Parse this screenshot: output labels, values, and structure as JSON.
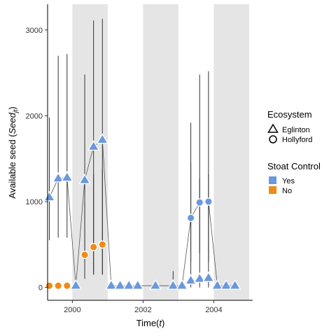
{
  "chart_data": {
    "type": "scatter",
    "xlabel": "Time(t)",
    "ylabel": "Available seed (Seed_jt)",
    "xlabel_parts": {
      "main": "Time(",
      "italic": "t",
      "close": ")"
    },
    "ylabel_parts": {
      "main": "Available seed (",
      "italic": "Seed",
      "sub": "jt",
      "close": ")"
    },
    "xlim": [
      1999.3,
      2005.1
    ],
    "ylim": [
      -150,
      3300
    ],
    "x_ticks": [
      2000,
      2002,
      2004
    ],
    "x_tick_labels": [
      "2000",
      "2002",
      "2004"
    ],
    "y_ticks": [
      0,
      1000,
      2000,
      3000
    ],
    "y_tick_labels": [
      "0",
      "1000",
      "2000",
      "3000"
    ],
    "grid": false,
    "shaded_periods": [
      [
        2000.0,
        2001.0
      ],
      [
        2002.0,
        2003.0
      ],
      [
        2004.0,
        2005.0
      ]
    ],
    "colors": {
      "Yes": "#6a98dc",
      "No": "#ef8a17",
      "line": "#555555",
      "shade": "#e5e5e5"
    },
    "legend": {
      "placement": "right",
      "ecosystem_title": "Ecosystem",
      "ecosystem_items": [
        {
          "label": "Eglinton",
          "shape": "triangle"
        },
        {
          "label": "Hollyford",
          "shape": "circle"
        }
      ],
      "control_title": "Stoat Control",
      "control_items": [
        {
          "label": "Yes",
          "color": "#6a98dc"
        },
        {
          "label": "No",
          "color": "#ef8a17"
        }
      ]
    },
    "series": [
      {
        "ecosystem": "Eglinton",
        "control": "Yes",
        "shape": "triangle",
        "points": [
          {
            "x": 1999.35,
            "y": 1050,
            "lo": 550,
            "hi": 1980
          },
          {
            "x": 1999.6,
            "y": 1270,
            "lo": 580,
            "hi": 2700
          },
          {
            "x": 1999.85,
            "y": 1280,
            "lo": 580,
            "hi": 2720
          },
          {
            "x": 2000.1,
            "y": 20,
            "lo": 0,
            "hi": 60
          },
          {
            "x": 2000.35,
            "y": 1250,
            "lo": 300,
            "hi": 2480
          },
          {
            "x": 2000.6,
            "y": 1640,
            "lo": 150,
            "hi": 3110
          },
          {
            "x": 2000.85,
            "y": 1720,
            "lo": 150,
            "hi": 3130
          },
          {
            "x": 2001.1,
            "y": 20,
            "lo": 0,
            "hi": 40
          },
          {
            "x": 2001.35,
            "y": 20,
            "lo": 0,
            "hi": 40
          },
          {
            "x": 2001.6,
            "y": 20,
            "lo": 0,
            "hi": 40
          },
          {
            "x": 2001.85,
            "y": 20,
            "lo": 0,
            "hi": 40
          },
          {
            "x": 2002.35,
            "y": 20,
            "lo": 0,
            "hi": 40
          },
          {
            "x": 2002.85,
            "y": 20,
            "lo": 0,
            "hi": 190
          },
          {
            "x": 2003.1,
            "y": 20,
            "lo": 0,
            "hi": 40
          },
          {
            "x": 2003.35,
            "y": 80,
            "lo": 0,
            "hi": 1920
          },
          {
            "x": 2003.6,
            "y": 100,
            "lo": 0,
            "hi": 2480
          },
          {
            "x": 2003.85,
            "y": 110,
            "lo": 0,
            "hi": 2520
          },
          {
            "x": 2004.1,
            "y": 20,
            "lo": 0,
            "hi": 40
          },
          {
            "x": 2004.35,
            "y": 20,
            "lo": 0,
            "hi": 40
          },
          {
            "x": 2004.6,
            "y": 20,
            "lo": 0,
            "hi": 40
          }
        ]
      },
      {
        "ecosystem": "Hollyford",
        "control": "No",
        "shape": "circle",
        "points": [
          {
            "x": 1999.35,
            "y": 20,
            "lo": 0,
            "hi": 60
          },
          {
            "x": 1999.6,
            "y": 20,
            "lo": 0,
            "hi": 60
          },
          {
            "x": 1999.85,
            "y": 20,
            "lo": 0,
            "hi": 60
          },
          {
            "x": 2000.35,
            "y": 380,
            "lo": 100,
            "hi": 1000
          },
          {
            "x": 2000.6,
            "y": 470,
            "lo": 150,
            "hi": 1320
          },
          {
            "x": 2000.85,
            "y": 500,
            "lo": 150,
            "hi": 1380
          }
        ]
      },
      {
        "ecosystem": "Hollyford",
        "control": "Yes",
        "shape": "circle",
        "points": [
          {
            "x": 2003.35,
            "y": 810,
            "lo": 300,
            "hi": 1450
          },
          {
            "x": 2003.6,
            "y": 990,
            "lo": 400,
            "hi": 1270
          },
          {
            "x": 2003.85,
            "y": 1000,
            "lo": 300,
            "hi": 1320
          }
        ]
      }
    ],
    "connecting_line": [
      {
        "x": 1999.35,
        "y": 1050
      },
      {
        "x": 1999.6,
        "y": 1270
      },
      {
        "x": 1999.85,
        "y": 1280
      },
      {
        "x": 2000.1,
        "y": 20
      },
      {
        "x": 2000.35,
        "y": 1250
      },
      {
        "x": 2000.6,
        "y": 1640
      },
      {
        "x": 2000.85,
        "y": 1720
      },
      {
        "x": 2001.1,
        "y": 20
      },
      {
        "x": 2001.35,
        "y": 20
      },
      {
        "x": 2001.6,
        "y": 20
      },
      {
        "x": 2001.85,
        "y": 20
      },
      {
        "x": 2002.35,
        "y": 20
      },
      {
        "x": 2002.85,
        "y": 20
      },
      {
        "x": 2003.1,
        "y": 20
      },
      {
        "x": 2003.35,
        "y": 810
      },
      {
        "x": 2003.6,
        "y": 990
      },
      {
        "x": 2003.85,
        "y": 1000
      },
      {
        "x": 2004.1,
        "y": 20
      },
      {
        "x": 2004.35,
        "y": 20
      },
      {
        "x": 2004.6,
        "y": 20
      }
    ]
  }
}
